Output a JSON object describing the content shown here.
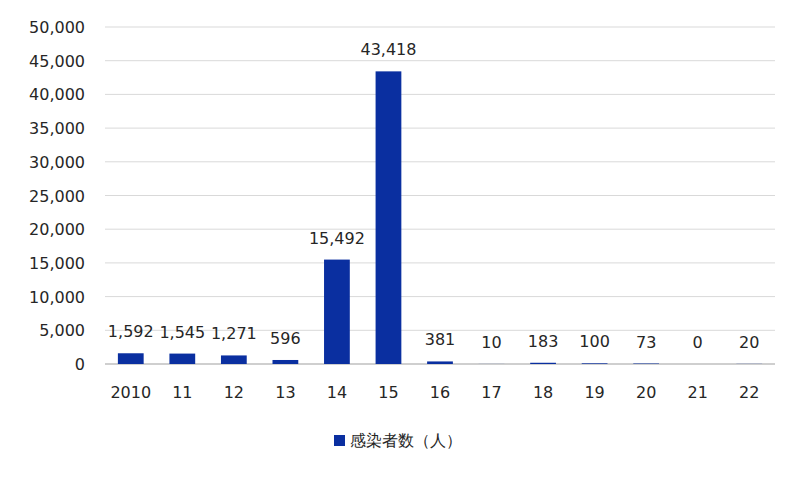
{
  "chart_data": {
    "type": "bar",
    "categories": [
      "2010",
      "11",
      "12",
      "13",
      "14",
      "15",
      "16",
      "17",
      "18",
      "19",
      "20",
      "21",
      "22"
    ],
    "series": [
      {
        "name": "感染者数（人）",
        "color": "#0a2fa0",
        "values": [
          1592,
          1545,
          1271,
          596,
          15492,
          43418,
          381,
          10,
          183,
          100,
          73,
          0,
          20
        ],
        "value_labels": [
          "1,592",
          "1,545",
          "1,271",
          "596",
          "15,492",
          "43,418",
          "381",
          "10",
          "183",
          "100",
          "73",
          "0",
          "20"
        ]
      }
    ],
    "ylim": [
      0,
      50000
    ],
    "yticks": [
      0,
      {
        "value": 5000,
        "label": "5,000"
      },
      {
        "value": 10000,
        "label": "10,000"
      },
      {
        "value": 15000,
        "label": "15,000"
      },
      {
        "value": 20000,
        "label": "20,000"
      },
      {
        "value": 25000,
        "label": "25,000"
      },
      {
        "value": 30000,
        "label": "30,000"
      },
      {
        "value": 35000,
        "label": "35,000"
      },
      {
        "value": 40000,
        "label": "40,000"
      },
      {
        "value": 45000,
        "label": "45,000"
      },
      {
        "value": 50000,
        "label": "50,000"
      }
    ],
    "grid": true,
    "data_labels": true,
    "legend": "bottom"
  }
}
